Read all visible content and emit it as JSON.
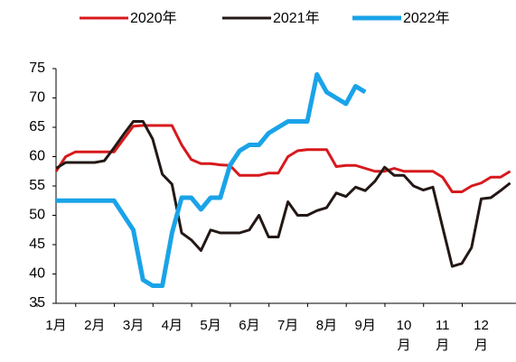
{
  "chart_data": {
    "type": "line",
    "x": [
      1,
      1.25,
      1.5,
      1.75,
      2,
      2.25,
      2.5,
      2.75,
      3,
      3.25,
      3.5,
      3.75,
      4,
      4.25,
      4.5,
      4.75,
      5,
      5.25,
      5.5,
      5.75,
      6,
      6.25,
      6.5,
      6.75,
      7,
      7.25,
      7.5,
      7.75,
      8,
      8.25,
      8.5,
      8.75,
      9,
      9.25,
      9.5,
      9.75,
      10,
      10.25,
      10.5,
      10.75,
      11,
      11.25,
      11.5,
      11.75,
      12,
      12.25,
      12.5,
      12.75
    ],
    "series": [
      {
        "name": "2020年",
        "color": "#d7191c",
        "values": [
          57.5,
          60,
          60.8,
          60.8,
          60.8,
          60.8,
          60.8,
          63,
          65.2,
          65.3,
          65.3,
          65.3,
          65.3,
          62,
          59.5,
          58.8,
          58.8,
          58.6,
          58.5,
          56.8,
          56.8,
          56.8,
          57.2,
          57.2,
          60,
          61,
          61.2,
          61.2,
          61.2,
          58.3,
          58.5,
          58.5,
          58,
          57.5,
          57.5,
          58,
          57.5,
          57.5,
          57.5,
          57.5,
          56.5,
          54,
          54,
          55,
          55.5,
          56.5,
          56.5,
          57.5
        ]
      },
      {
        "name": "2021年",
        "color": "#231815",
        "values": [
          58,
          59,
          59,
          59,
          59,
          59.3,
          61.5,
          63.8,
          66,
          66,
          63,
          57,
          55.3,
          47,
          45.8,
          44,
          47.5,
          47,
          47,
          47,
          47.5,
          50,
          46.3,
          46.3,
          52.3,
          50,
          50,
          50.8,
          51.3,
          53.8,
          53.2,
          54.8,
          54.2,
          55.8,
          58.2,
          56.8,
          56.8,
          55,
          54.3,
          54.8,
          48,
          41.3,
          41.8,
          44.5,
          52.8,
          53,
          54.2,
          55.5
        ]
      },
      {
        "name": "2022年",
        "color": "#1aa3e8",
        "values": [
          52.5,
          52.5,
          52.5,
          52.5,
          52.5,
          52.5,
          52.5,
          50,
          47.5,
          39,
          38,
          38,
          47,
          53,
          53,
          51,
          53,
          53,
          58.5,
          61,
          62,
          62,
          64,
          65,
          66,
          66,
          66,
          74,
          71,
          70,
          69,
          72,
          71,
          null,
          null,
          null,
          null,
          null,
          null,
          null,
          null,
          null,
          null,
          null,
          null,
          null,
          null,
          null
        ]
      }
    ],
    "xlim": [
      1,
      12.9
    ],
    "xticks": [
      {
        "value": 1,
        "label": "1月"
      },
      {
        "value": 2,
        "label": "2月"
      },
      {
        "value": 3,
        "label": "3月"
      },
      {
        "value": 4,
        "label": "4月"
      },
      {
        "value": 5,
        "label": "5月"
      },
      {
        "value": 6,
        "label": "6月"
      },
      {
        "value": 7,
        "label": "7月"
      },
      {
        "value": 8,
        "label": "8月"
      },
      {
        "value": 9,
        "label": "9月"
      },
      {
        "value": 10,
        "label": "10月"
      },
      {
        "value": 11,
        "label": "11月"
      },
      {
        "value": 12,
        "label": "12月"
      }
    ],
    "ylim": [
      35,
      75
    ],
    "yticks": [
      35,
      40,
      45,
      50,
      55,
      60,
      65,
      70,
      75
    ],
    "legend": "top"
  }
}
